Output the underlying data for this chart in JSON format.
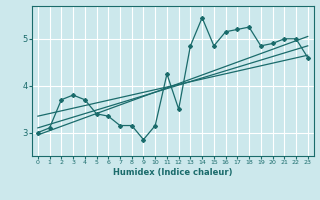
{
  "xlabel": "Humidex (Indice chaleur)",
  "bg_color": "#cce8ec",
  "grid_color": "#ffffff",
  "line_color": "#1a6b6b",
  "xlim": [
    -0.5,
    23.5
  ],
  "ylim": [
    2.5,
    5.7
  ],
  "yticks": [
    3,
    4,
    5
  ],
  "xticks": [
    0,
    1,
    2,
    3,
    4,
    5,
    6,
    7,
    8,
    9,
    10,
    11,
    12,
    13,
    14,
    15,
    16,
    17,
    18,
    19,
    20,
    21,
    22,
    23
  ],
  "curve1_x": [
    0,
    1,
    2,
    3,
    4,
    5,
    6,
    7,
    8,
    9,
    10,
    11,
    12,
    13,
    14,
    15,
    16,
    17,
    18,
    19,
    20,
    21,
    22,
    23
  ],
  "curve1_y": [
    3.0,
    3.1,
    3.7,
    3.8,
    3.7,
    3.4,
    3.35,
    3.15,
    3.15,
    2.85,
    3.15,
    4.25,
    3.5,
    4.85,
    5.45,
    4.85,
    5.15,
    5.2,
    5.25,
    4.85,
    4.9,
    5.0,
    5.0,
    4.6
  ],
  "line1_x": [
    0,
    23
  ],
  "line1_y": [
    2.95,
    5.05
  ],
  "line2_x": [
    0,
    23
  ],
  "line2_y": [
    3.1,
    4.85
  ],
  "line3_x": [
    0,
    23
  ],
  "line3_y": [
    3.35,
    4.65
  ]
}
